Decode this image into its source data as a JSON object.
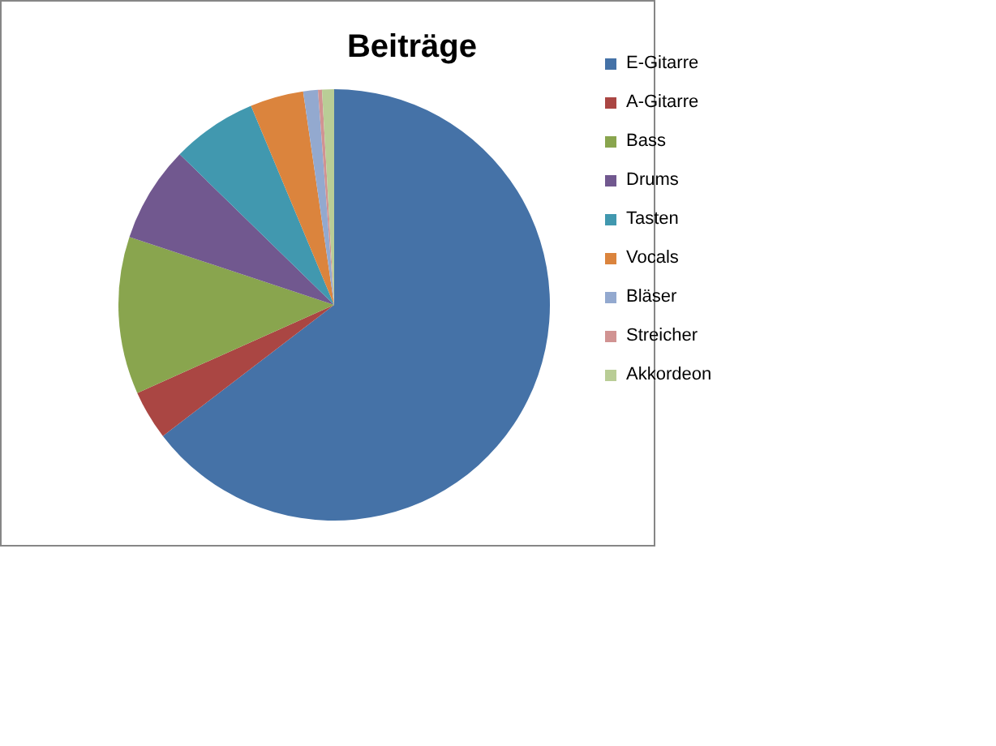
{
  "chart_data": {
    "type": "pie",
    "title": "Beiträge",
    "categories": [
      "E-Gitarre",
      "A-Gitarre",
      "Bass",
      "Drums",
      "Tasten",
      "Vocals",
      "Bläser",
      "Streicher",
      "Akkordeon"
    ],
    "values": [
      64.6,
      3.7,
      11.8,
      7.2,
      6.4,
      4.0,
      1.1,
      0.3,
      0.9
    ],
    "colors": [
      "#4572a7",
      "#aa4643",
      "#89a54e",
      "#71588f",
      "#4198af",
      "#db843d",
      "#93a9cf",
      "#d19392",
      "#b9cd96"
    ],
    "legend": "right"
  }
}
